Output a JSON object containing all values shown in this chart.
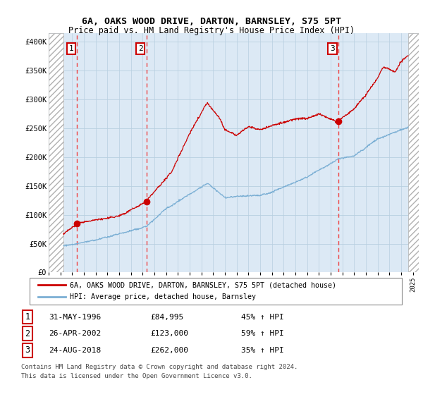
{
  "title": "6A, OAKS WOOD DRIVE, DARTON, BARNSLEY, S75 5PT",
  "subtitle": "Price paid vs. HM Land Registry's House Price Index (HPI)",
  "ylabel_ticks": [
    0,
    50000,
    100000,
    150000,
    200000,
    250000,
    300000,
    350000,
    400000
  ],
  "ylabel_labels": [
    "£0",
    "£50K",
    "£100K",
    "£150K",
    "£200K",
    "£250K",
    "£300K",
    "£350K",
    "£400K"
  ],
  "ylim": [
    0,
    415000
  ],
  "xlim_start": 1994.0,
  "xlim_end": 2025.5,
  "hatch_left_end": 1995.25,
  "hatch_right_start": 2024.6,
  "sale1_date": 1996.42,
  "sale1_price": 84995,
  "sale1_label": "1",
  "sale2_date": 2002.32,
  "sale2_price": 123000,
  "sale2_label": "2",
  "sale3_date": 2018.65,
  "sale3_price": 262000,
  "sale3_label": "3",
  "legend_line1": "6A, OAKS WOOD DRIVE, DARTON, BARNSLEY, S75 5PT (detached house)",
  "legend_line2": "HPI: Average price, detached house, Barnsley",
  "table_data": [
    [
      "1",
      "31-MAY-1996",
      "£84,995",
      "45% ↑ HPI"
    ],
    [
      "2",
      "26-APR-2002",
      "£123,000",
      "59% ↑ HPI"
    ],
    [
      "3",
      "24-AUG-2018",
      "£262,000",
      "35% ↑ HPI"
    ]
  ],
  "footnote1": "Contains HM Land Registry data © Crown copyright and database right 2024.",
  "footnote2": "This data is licensed under the Open Government Licence v3.0.",
  "grid_color": "#b8cfe0",
  "bg_color": "#dce9f5",
  "red_line_color": "#cc0000",
  "blue_line_color": "#7bafd4",
  "sale_marker_color": "#cc0000",
  "vline_color": "#ee4444",
  "hpi_keypoints": [
    [
      1994.0,
      43000
    ],
    [
      1995.3,
      46000
    ],
    [
      1998.0,
      55000
    ],
    [
      2002.32,
      78000
    ],
    [
      2004.0,
      110000
    ],
    [
      2007.5,
      155000
    ],
    [
      2009.0,
      130000
    ],
    [
      2012.0,
      133000
    ],
    [
      2013.0,
      138000
    ],
    [
      2016.0,
      163000
    ],
    [
      2018.65,
      194000
    ],
    [
      2020.0,
      200000
    ],
    [
      2022.0,
      230000
    ],
    [
      2024.6,
      250000
    ],
    [
      2025.3,
      248000
    ]
  ],
  "red_keypoints_seg1": [
    [
      1994.0,
      65000
    ],
    [
      1995.3,
      68000
    ],
    [
      1996.42,
      84995
    ],
    [
      1998.0,
      92000
    ],
    [
      2000.0,
      97000
    ],
    [
      2002.32,
      123000
    ]
  ],
  "red_keypoints_seg2": [
    [
      2002.32,
      123000
    ],
    [
      2004.5,
      175000
    ],
    [
      2006.0,
      240000
    ],
    [
      2007.5,
      295000
    ],
    [
      2008.5,
      270000
    ],
    [
      2009.0,
      248000
    ],
    [
      2010.0,
      240000
    ],
    [
      2011.0,
      255000
    ],
    [
      2012.0,
      248000
    ],
    [
      2013.0,
      255000
    ],
    [
      2014.0,
      262000
    ],
    [
      2015.0,
      268000
    ],
    [
      2016.0,
      270000
    ],
    [
      2017.0,
      278000
    ],
    [
      2018.65,
      262000
    ]
  ],
  "red_keypoints_seg3": [
    [
      2018.65,
      262000
    ],
    [
      2019.0,
      270000
    ],
    [
      2020.0,
      285000
    ],
    [
      2021.0,
      310000
    ],
    [
      2022.0,
      340000
    ],
    [
      2022.5,
      360000
    ],
    [
      2023.0,
      355000
    ],
    [
      2023.5,
      350000
    ],
    [
      2024.0,
      370000
    ],
    [
      2024.6,
      380000
    ],
    [
      2025.3,
      370000
    ]
  ]
}
